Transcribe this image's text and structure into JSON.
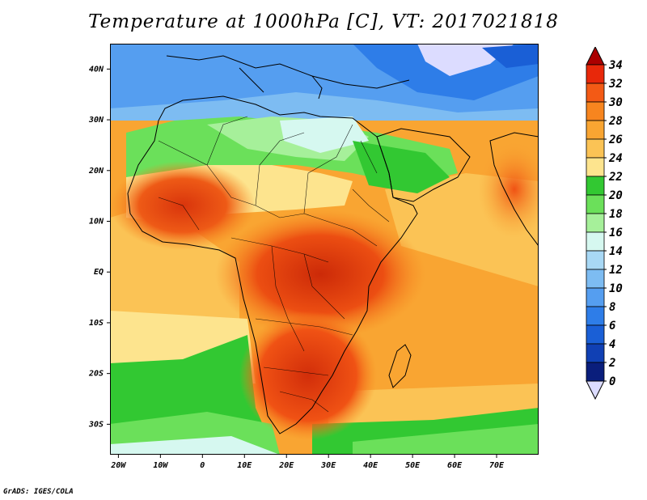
{
  "title": "Temperature at 1000hPa [C], VT: 2017021818",
  "credit": "GrADS: IGES/COLA",
  "map": {
    "lat_ticks": [
      "40N",
      "30N",
      "20N",
      "10N",
      "EQ",
      "10S",
      "20S",
      "30S"
    ],
    "lon_ticks": [
      "20W",
      "10W",
      "0",
      "10E",
      "20E",
      "30E",
      "40E",
      "50E",
      "60E",
      "70E"
    ],
    "lat_range": [
      -36,
      45
    ],
    "lon_range": [
      -22,
      80
    ]
  },
  "colorbar": {
    "levels": [
      "34",
      "32",
      "30",
      "28",
      "26",
      "24",
      "22",
      "20",
      "18",
      "16",
      "14",
      "12",
      "10",
      "8",
      "6",
      "4",
      "2",
      "0"
    ],
    "colors": [
      "#ab0000",
      "#e8280a",
      "#f35a15",
      "#f7851f",
      "#f9a532",
      "#fbc355",
      "#fde48e",
      "#32c832",
      "#6be05a",
      "#a6f09a",
      "#d6f8f0",
      "#a8d8f5",
      "#7dbcf2",
      "#559ef0",
      "#2e7de8",
      "#1a5fd6",
      "#1040b4",
      "#0a1e7c",
      "#dcdcff"
    ]
  }
}
